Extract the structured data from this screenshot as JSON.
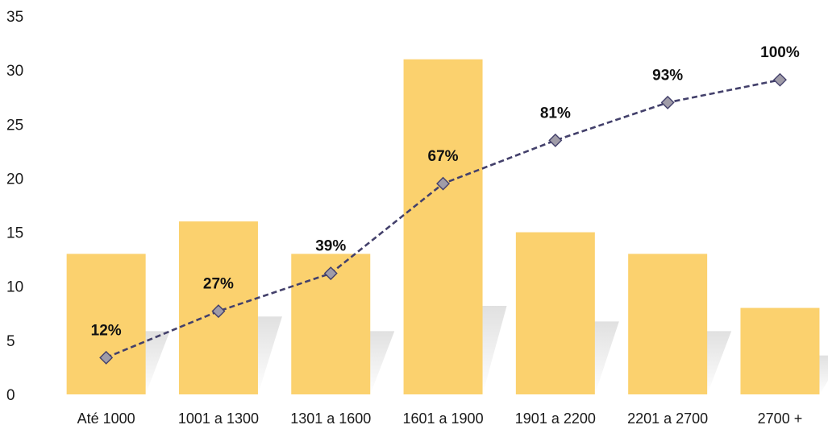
{
  "chart_data": {
    "type": "bar",
    "categories": [
      "Até 1000",
      "1001 a 1300",
      "1301 a 1600",
      "1601 a 1900",
      "1901 a 2200",
      "2201 a 2700",
      "2700 +"
    ],
    "series": [
      {
        "type": "bar",
        "values": [
          13,
          16,
          13,
          31,
          15,
          13,
          8
        ],
        "color": "#FBD16E"
      },
      {
        "type": "line",
        "values": [
          3.4,
          7.7,
          11.2,
          19.5,
          23.5,
          27,
          29.1
        ],
        "labels": [
          "12%",
          "27%",
          "39%",
          "67%",
          "81%",
          "93%",
          "100%"
        ],
        "color": "#43406B",
        "marker_color": "#A09CA8",
        "line_style": "dashed",
        "marker": "diamond"
      }
    ],
    "yticks": [
      "0",
      "5",
      "10",
      "15",
      "20",
      "25",
      "30",
      "35"
    ],
    "ylim": [
      0,
      35
    ],
    "grid": false,
    "legend": "none",
    "title": "",
    "xlabel": "",
    "ylabel": ""
  }
}
